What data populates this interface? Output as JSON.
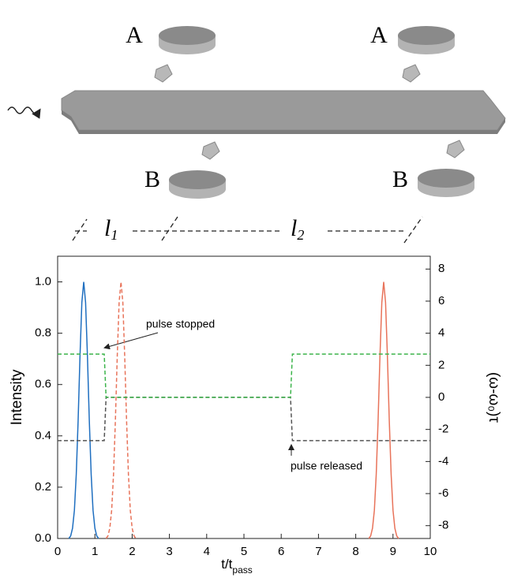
{
  "diagram": {
    "labels": [
      "A",
      "A",
      "B",
      "B"
    ],
    "lengths": [
      {
        "main": "l",
        "sub": "1"
      },
      {
        "main": "l",
        "sub": "2"
      }
    ]
  },
  "chart_data": {
    "type": "line",
    "x_label": {
      "main": "t/t",
      "sub": "pass"
    },
    "y_label": "Intensity",
    "y2_label": "(ω-ω₀)τ",
    "xlim": [
      0,
      10
    ],
    "xticks": [
      0,
      1,
      2,
      3,
      4,
      5,
      6,
      7,
      8,
      9,
      10
    ],
    "ylim": [
      0,
      1.1
    ],
    "yticks": [
      {
        "value": 0,
        "label": "0.0"
      },
      {
        "value": 0.2,
        "label": "0.2"
      },
      {
        "value": 0.4,
        "label": "0.4"
      },
      {
        "value": 0.6,
        "label": "0.6"
      },
      {
        "value": 0.8,
        "label": "0.8"
      },
      {
        "value": 1,
        "label": "1.0"
      }
    ],
    "y2lim": [
      -8.8,
      8.8
    ],
    "y2ticks": [
      -8,
      -6,
      -4,
      -2,
      0,
      2,
      4,
      6,
      8
    ],
    "grid": false,
    "annotations": [
      "pulse stopped",
      "pulse released"
    ],
    "series": [
      {
        "color": "#1f6fc0",
        "dash": false,
        "x": [
          0.3,
          0.35,
          0.4,
          0.45,
          0.5,
          0.55,
          0.6,
          0.65,
          0.7,
          0.75,
          0.8,
          0.85,
          0.9,
          0.95,
          1.0,
          1.05,
          1.1
        ],
        "values": [
          0,
          0.01,
          0.04,
          0.11,
          0.25,
          0.46,
          0.71,
          0.92,
          1,
          0.92,
          0.71,
          0.46,
          0.25,
          0.11,
          0.04,
          0.01,
          0
        ]
      },
      {
        "color": "#e8735a",
        "dash": true,
        "x": [
          1.3,
          1.35,
          1.4,
          1.45,
          1.5,
          1.55,
          1.6,
          1.65,
          1.7,
          1.75,
          1.8,
          1.85,
          1.9,
          1.95,
          2.0,
          2.05,
          2.1
        ],
        "values": [
          0,
          0.01,
          0.04,
          0.11,
          0.25,
          0.46,
          0.71,
          0.92,
          1,
          0.92,
          0.71,
          0.46,
          0.25,
          0.11,
          0.04,
          0.01,
          0
        ]
      },
      {
        "color": "#e8735a",
        "dash": false,
        "x": [
          8.35,
          8.4,
          8.45,
          8.5,
          8.55,
          8.6,
          8.65,
          8.7,
          8.75,
          8.8,
          8.85,
          8.9,
          8.95,
          9.0,
          9.05,
          9.1,
          9.15
        ],
        "values": [
          0,
          0.01,
          0.04,
          0.11,
          0.25,
          0.46,
          0.71,
          0.92,
          1,
          0.92,
          0.71,
          0.46,
          0.25,
          0.11,
          0.04,
          0.01,
          0
        ]
      },
      {
        "color": "#555555",
        "dash": true,
        "axis": "y2",
        "x": [
          0,
          1.25,
          1.3,
          6.25,
          6.3,
          10
        ],
        "values": [
          -2.7,
          -2.7,
          0,
          0,
          -2.7,
          -2.7
        ]
      },
      {
        "color": "#3cb44b",
        "dash": true,
        "axis": "y2",
        "x": [
          0,
          1.25,
          1.3,
          6.25,
          6.3,
          10
        ],
        "values": [
          2.7,
          2.7,
          0,
          0,
          2.7,
          2.7
        ]
      }
    ]
  }
}
